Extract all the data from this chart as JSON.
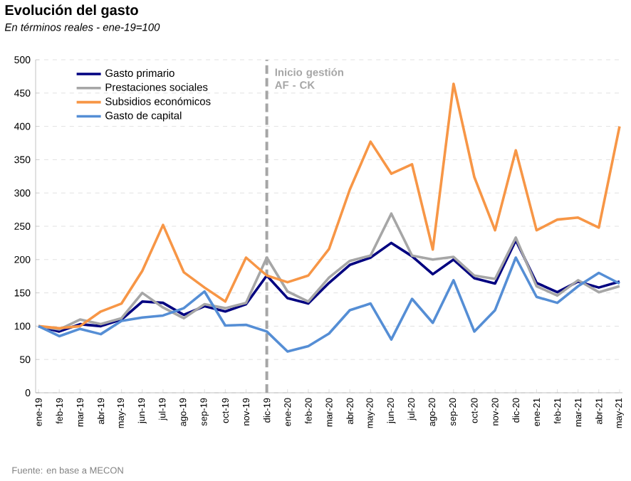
{
  "chart_data": {
    "type": "line",
    "title": "Evolución del gasto",
    "subtitle": "En términos reales - ene-19=100",
    "categories": [
      "ene-19",
      "feb-19",
      "mar-19",
      "abr-19",
      "may-19",
      "jun-19",
      "jul-19",
      "ago-19",
      "sep-19",
      "oct-19",
      "nov-19",
      "dic-19",
      "ene-20",
      "feb-20",
      "mar-20",
      "abr-20",
      "may-20",
      "jun-20",
      "jul-20",
      "ago-20",
      "sep-20",
      "oct-20",
      "nov-20",
      "dic-20",
      "ene-21",
      "feb-21",
      "mar-21",
      "abr-21",
      "may-21"
    ],
    "series": [
      {
        "name": "Gasto primario",
        "color": "#000080",
        "values": [
          100,
          92,
          103,
          100,
          110,
          137,
          135,
          117,
          130,
          122,
          133,
          176,
          142,
          134,
          165,
          192,
          203,
          225,
          205,
          178,
          200,
          172,
          164,
          229,
          165,
          151,
          167,
          158,
          167
        ]
      },
      {
        "name": "Prestaciones sociales",
        "color": "#a6a6a6",
        "values": [
          100,
          95,
          110,
          103,
          112,
          150,
          128,
          112,
          133,
          127,
          135,
          203,
          152,
          137,
          173,
          198,
          206,
          269,
          206,
          200,
          204,
          176,
          171,
          233,
          160,
          146,
          169,
          151,
          160
        ]
      },
      {
        "name": "Subsidios económicos",
        "color": "#f79646",
        "values": [
          100,
          97,
          100,
          122,
          134,
          183,
          252,
          181,
          158,
          137,
          203,
          176,
          166,
          176,
          216,
          305,
          377,
          329,
          343,
          215,
          464,
          324,
          244,
          364,
          244,
          260,
          263,
          248,
          400
        ]
      },
      {
        "name": "Gasto de capital",
        "color": "#558ed5",
        "values": [
          100,
          85,
          96,
          88,
          108,
          113,
          116,
          127,
          152,
          101,
          102,
          92,
          62,
          70,
          89,
          124,
          134,
          80,
          141,
          105,
          169,
          92,
          124,
          203,
          144,
          135,
          160,
          180,
          164
        ]
      }
    ],
    "ylim": [
      0,
      500
    ],
    "yticks": [
      0,
      50,
      100,
      150,
      200,
      250,
      300,
      350,
      400,
      450,
      500
    ],
    "grid": "y",
    "legend": "top left",
    "line_style": "solid",
    "marker": "none",
    "ref_lines": [
      {
        "axis": "x",
        "value": "dic-19",
        "label": "Inicio gestión AF - CK",
        "color": "#a6a6a6",
        "line_style": "dashed"
      }
    ],
    "annotations": [
      "Fuente: en base a MECON"
    ]
  }
}
